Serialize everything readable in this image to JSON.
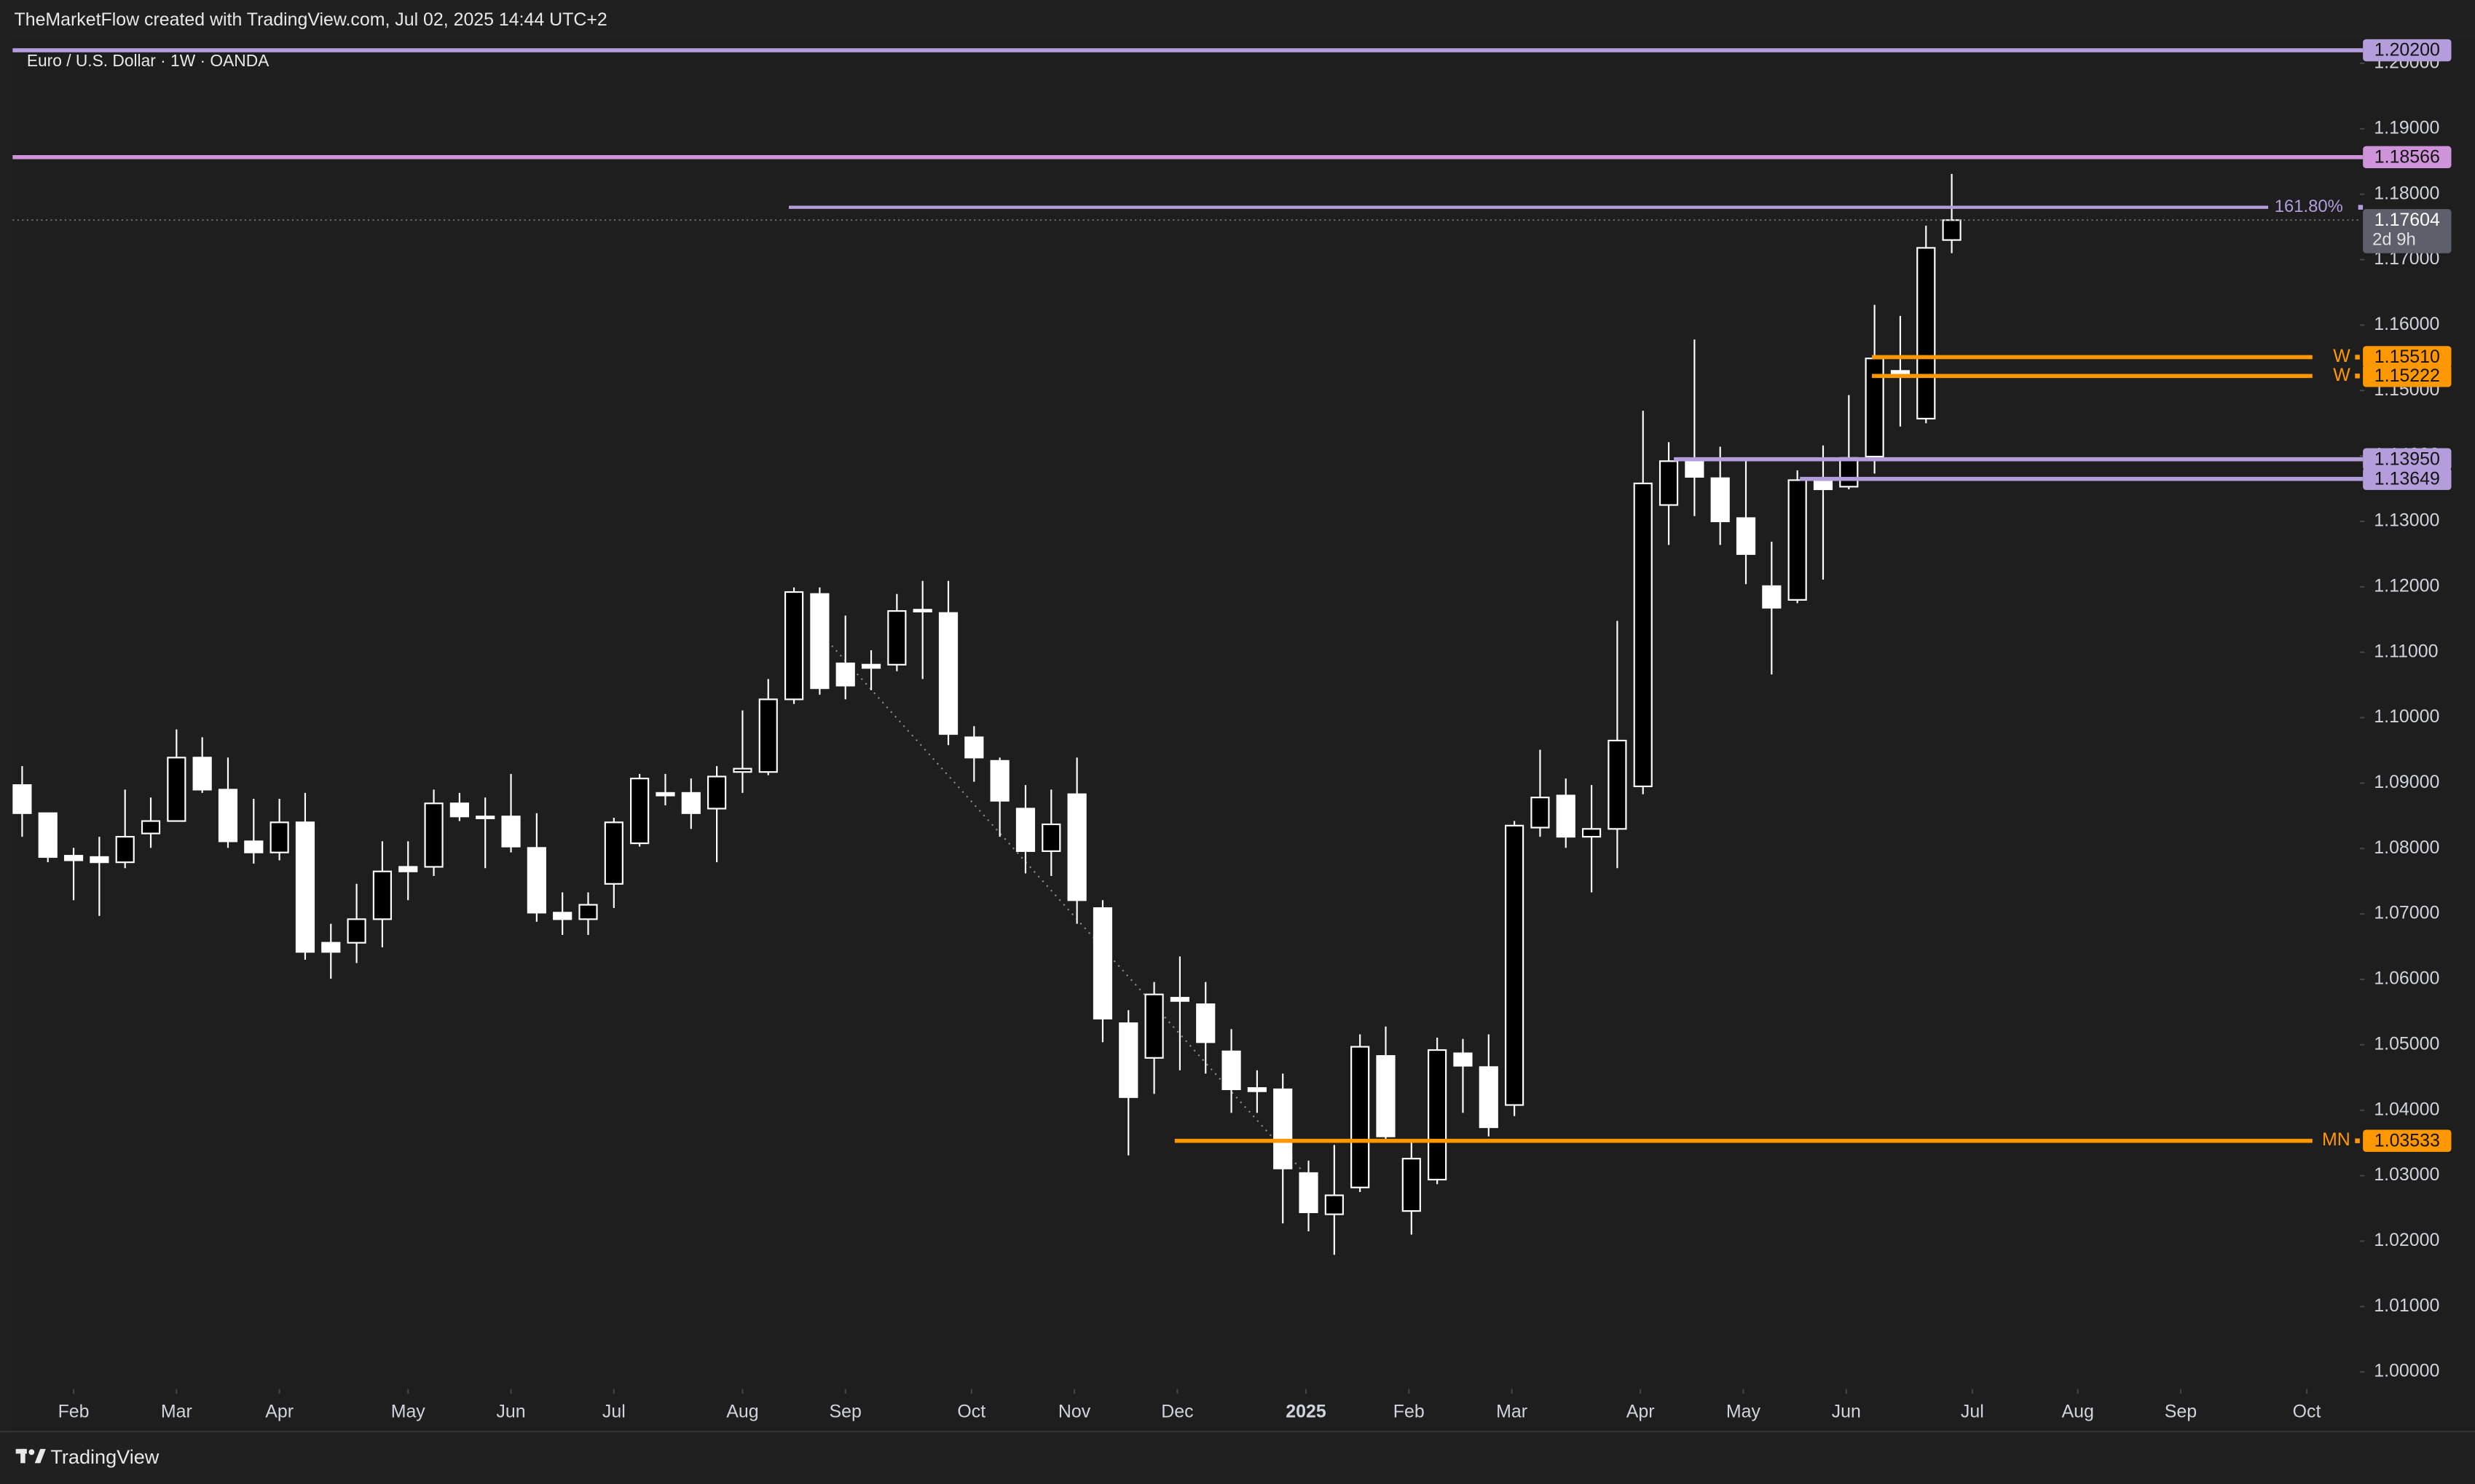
{
  "header": {
    "caption": "TheMarketFlow created with TradingView.com, Jul 02, 2025 14:44 UTC+2"
  },
  "footer": {
    "brand": "TradingView"
  },
  "chart_data": {
    "type": "candlestick",
    "title": "Euro / U.S. Dollar · 1W · OANDA",
    "up_color": "#000000",
    "down_color": "#ffffff",
    "wick_color": "#ffffff",
    "candles": [
      {
        "o": 1.0897,
        "h": 1.0926,
        "l": 1.0818,
        "c": 1.0854
      },
      {
        "o": 1.0854,
        "h": 1.0854,
        "l": 1.0779,
        "c": 1.0787
      },
      {
        "o": 1.0789,
        "h": 1.0801,
        "l": 1.0721,
        "c": 1.0782
      },
      {
        "o": 1.0787,
        "h": 1.0818,
        "l": 1.0697,
        "c": 1.0779
      },
      {
        "o": 1.0779,
        "h": 1.089,
        "l": 1.077,
        "c": 1.0818
      },
      {
        "o": 1.0823,
        "h": 1.0878,
        "l": 1.0801,
        "c": 1.0842
      },
      {
        "o": 1.0842,
        "h": 1.0982,
        "l": 1.0842,
        "c": 1.0939
      },
      {
        "o": 1.0939,
        "h": 1.097,
        "l": 1.0885,
        "c": 1.089
      },
      {
        "o": 1.089,
        "h": 1.0939,
        "l": 1.0801,
        "c": 1.0811
      },
      {
        "o": 1.0811,
        "h": 1.0876,
        "l": 1.0777,
        "c": 1.0794
      },
      {
        "o": 1.0794,
        "h": 1.0876,
        "l": 1.0782,
        "c": 1.084
      },
      {
        "o": 1.084,
        "h": 1.0885,
        "l": 1.063,
        "c": 1.0642
      },
      {
        "o": 1.0656,
        "h": 1.0685,
        "l": 1.0601,
        "c": 1.0642
      },
      {
        "o": 1.0656,
        "h": 1.0746,
        "l": 1.0625,
        "c": 1.0692
      },
      {
        "o": 1.0692,
        "h": 1.0811,
        "l": 1.0649,
        "c": 1.0765
      },
      {
        "o": 1.0772,
        "h": 1.0811,
        "l": 1.0721,
        "c": 1.0765
      },
      {
        "o": 1.0772,
        "h": 1.089,
        "l": 1.0758,
        "c": 1.0869
      },
      {
        "o": 1.0869,
        "h": 1.0885,
        "l": 1.0842,
        "c": 1.0849
      },
      {
        "o": 1.0849,
        "h": 1.0878,
        "l": 1.077,
        "c": 1.0847
      },
      {
        "o": 1.0849,
        "h": 1.0914,
        "l": 1.0794,
        "c": 1.0803
      },
      {
        "o": 1.0801,
        "h": 1.0854,
        "l": 1.0688,
        "c": 1.0702
      },
      {
        "o": 1.0702,
        "h": 1.0733,
        "l": 1.0668,
        "c": 1.0692
      },
      {
        "o": 1.0692,
        "h": 1.0733,
        "l": 1.0668,
        "c": 1.0714
      },
      {
        "o": 1.0746,
        "h": 1.0847,
        "l": 1.0709,
        "c": 1.084
      },
      {
        "o": 1.0808,
        "h": 1.0914,
        "l": 1.0803,
        "c": 1.0907
      },
      {
        "o": 1.0885,
        "h": 1.0914,
        "l": 1.0866,
        "c": 1.0881
      },
      {
        "o": 1.0885,
        "h": 1.0907,
        "l": 1.083,
        "c": 1.0854
      },
      {
        "o": 1.0861,
        "h": 1.0926,
        "l": 1.0779,
        "c": 1.091
      },
      {
        "o": 1.0917,
        "h": 1.1011,
        "l": 1.0885,
        "c": 1.0922
      },
      {
        "o": 1.0917,
        "h": 1.1059,
        "l": 1.0912,
        "c": 1.1028
      },
      {
        "o": 1.1028,
        "h": 1.1199,
        "l": 1.1021,
        "c": 1.1192
      },
      {
        "o": 1.1189,
        "h": 1.1199,
        "l": 1.1035,
        "c": 1.1045
      },
      {
        "o": 1.1083,
        "h": 1.1156,
        "l": 1.1028,
        "c": 1.1049
      },
      {
        "o": 1.1081,
        "h": 1.1103,
        "l": 1.1042,
        "c": 1.1076
      },
      {
        "o": 1.1081,
        "h": 1.1189,
        "l": 1.1071,
        "c": 1.1163
      },
      {
        "o": 1.1165,
        "h": 1.1209,
        "l": 1.1059,
        "c": 1.1163
      },
      {
        "o": 1.116,
        "h": 1.1209,
        "l": 1.0958,
        "c": 1.0975
      },
      {
        "o": 1.097,
        "h": 1.0987,
        "l": 1.0902,
        "c": 1.0939
      },
      {
        "o": 1.0934,
        "h": 1.0939,
        "l": 1.0818,
        "c": 1.0873
      },
      {
        "o": 1.0861,
        "h": 1.0897,
        "l": 1.0762,
        "c": 1.0796
      },
      {
        "o": 1.0796,
        "h": 1.089,
        "l": 1.0758,
        "c": 1.0837
      },
      {
        "o": 1.0883,
        "h": 1.0939,
        "l": 1.0685,
        "c": 1.0721
      },
      {
        "o": 1.0709,
        "h": 1.0721,
        "l": 1.0504,
        "c": 1.054
      },
      {
        "o": 1.0533,
        "h": 1.0553,
        "l": 1.0331,
        "c": 1.042
      },
      {
        "o": 1.048,
        "h": 1.0596,
        "l": 1.0425,
        "c": 1.0577
      },
      {
        "o": 1.0572,
        "h": 1.0635,
        "l": 1.0461,
        "c": 1.0567
      },
      {
        "o": 1.0562,
        "h": 1.0596,
        "l": 1.0456,
        "c": 1.0504
      },
      {
        "o": 1.049,
        "h": 1.0524,
        "l": 1.0396,
        "c": 1.0432
      },
      {
        "o": 1.0434,
        "h": 1.0461,
        "l": 1.0396,
        "c": 1.0429
      },
      {
        "o": 1.0432,
        "h": 1.0456,
        "l": 1.0227,
        "c": 1.0311
      },
      {
        "o": 1.0304,
        "h": 1.0323,
        "l": 1.0215,
        "c": 1.0244
      },
      {
        "o": 1.0241,
        "h": 1.0347,
        "l": 1.0179,
        "c": 1.027
      },
      {
        "o": 1.0282,
        "h": 1.0516,
        "l": 1.0275,
        "c": 1.0497
      },
      {
        "o": 1.0483,
        "h": 1.0528,
        "l": 1.0355,
        "c": 1.036
      },
      {
        "o": 1.0246,
        "h": 1.0355,
        "l": 1.021,
        "c": 1.0326
      },
      {
        "o": 1.0294,
        "h": 1.0511,
        "l": 1.0287,
        "c": 1.0492
      },
      {
        "o": 1.0487,
        "h": 1.0509,
        "l": 1.0396,
        "c": 1.0468
      },
      {
        "o": 1.0466,
        "h": 1.0516,
        "l": 1.036,
        "c": 1.0374
      },
      {
        "o": 1.0408,
        "h": 1.0842,
        "l": 1.0391,
        "c": 1.0835
      },
      {
        "o": 1.0832,
        "h": 1.0951,
        "l": 1.0818,
        "c": 1.0878
      },
      {
        "o": 1.0881,
        "h": 1.0907,
        "l": 1.0801,
        "c": 1.0818
      },
      {
        "o": 1.0818,
        "h": 1.0897,
        "l": 1.0733,
        "c": 1.083
      },
      {
        "o": 1.083,
        "h": 1.1148,
        "l": 1.077,
        "c": 1.0965
      },
      {
        "o": 1.0895,
        "h": 1.1469,
        "l": 1.0883,
        "c": 1.1358
      },
      {
        "o": 1.1325,
        "h": 1.1421,
        "l": 1.1264,
        "c": 1.1392
      },
      {
        "o": 1.1392,
        "h": 1.1578,
        "l": 1.1308,
        "c": 1.1368
      },
      {
        "o": 1.1366,
        "h": 1.1414,
        "l": 1.1264,
        "c": 1.13
      },
      {
        "o": 1.1305,
        "h": 1.1392,
        "l": 1.1204,
        "c": 1.125
      },
      {
        "o": 1.1201,
        "h": 1.1269,
        "l": 1.1066,
        "c": 1.1168
      },
      {
        "o": 1.118,
        "h": 1.1378,
        "l": 1.1175,
        "c": 1.1363
      },
      {
        "o": 1.1366,
        "h": 1.1416,
        "l": 1.1211,
        "c": 1.1349
      },
      {
        "o": 1.1353,
        "h": 1.1493,
        "l": 1.1349,
        "c": 1.1397
      },
      {
        "o": 1.1399,
        "h": 1.1631,
        "l": 1.1373,
        "c": 1.1549
      },
      {
        "o": 1.153,
        "h": 1.1614,
        "l": 1.1445,
        "c": 1.1522
      },
      {
        "o": 1.1457,
        "h": 1.1752,
        "l": 1.145,
        "c": 1.1718
      },
      {
        "o": 1.173,
        "h": 1.1831,
        "l": 1.171,
        "c": 1.17604
      }
    ],
    "countdown": "2d 9h",
    "xlim": [
      -0.37,
      90.86
    ],
    "xticks": [
      {
        "value": 2.0,
        "label": "Feb"
      },
      {
        "value": 6.0,
        "label": "Mar"
      },
      {
        "value": 10.0,
        "label": "Apr"
      },
      {
        "value": 15.0,
        "label": "May"
      },
      {
        "value": 19.0,
        "label": "Jun"
      },
      {
        "value": 23.0,
        "label": "Jul"
      },
      {
        "value": 28.0,
        "label": "Aug"
      },
      {
        "value": 32.0,
        "label": "Sep"
      },
      {
        "value": 36.9,
        "label": "Oct"
      },
      {
        "value": 40.9,
        "label": "Nov"
      },
      {
        "value": 44.9,
        "label": "Dec"
      },
      {
        "value": 49.9,
        "label": "2025",
        "bold": true
      },
      {
        "value": 53.9,
        "label": "Feb"
      },
      {
        "value": 57.9,
        "label": "Mar"
      },
      {
        "value": 62.9,
        "label": "Apr"
      },
      {
        "value": 66.9,
        "label": "May"
      },
      {
        "value": 70.9,
        "label": "Jun"
      },
      {
        "value": 75.8,
        "label": "Jul"
      },
      {
        "value": 79.9,
        "label": "Aug"
      },
      {
        "value": 83.9,
        "label": "Sep"
      },
      {
        "value": 88.8,
        "label": "Oct"
      }
    ],
    "ylim": [
      0.9974,
      1.2036
    ],
    "yticks": [
      {
        "value": 1.0,
        "label": "1.00000"
      },
      {
        "value": 1.01,
        "label": "1.01000"
      },
      {
        "value": 1.02,
        "label": "1.02000"
      },
      {
        "value": 1.03,
        "label": "1.03000"
      },
      {
        "value": 1.04,
        "label": "1.04000"
      },
      {
        "value": 1.05,
        "label": "1.05000"
      },
      {
        "value": 1.06,
        "label": "1.06000"
      },
      {
        "value": 1.07,
        "label": "1.07000"
      },
      {
        "value": 1.08,
        "label": "1.08000"
      },
      {
        "value": 1.09,
        "label": "1.09000"
      },
      {
        "value": 1.1,
        "label": "1.10000"
      },
      {
        "value": 1.11,
        "label": "1.11000"
      },
      {
        "value": 1.12,
        "label": "1.12000"
      },
      {
        "value": 1.13,
        "label": "1.13000"
      },
      {
        "value": 1.14,
        "label": "1.14000"
      },
      {
        "value": 1.15,
        "label": "1.15000"
      },
      {
        "value": 1.16,
        "label": "1.16000"
      },
      {
        "value": 1.17,
        "label": "1.17000"
      },
      {
        "value": 1.18,
        "label": "1.18000"
      },
      {
        "value": 1.19,
        "label": "1.19000"
      },
      {
        "value": 1.2,
        "label": "1.20000"
      }
    ],
    "grid": false,
    "levels": [
      {
        "value": 1.202,
        "label": "1.20200",
        "color": "#b39ddb"
      },
      {
        "value": 1.18566,
        "label": "1.18566",
        "color": "#ce93d8"
      },
      {
        "value": 1.178,
        "label": "161.80%",
        "color": "#b39ddb",
        "style": "fib",
        "from": 29.8,
        "to": 87.3
      },
      {
        "value": 1.1551,
        "label": "1.15510",
        "tag": "W",
        "color": "#ff9800",
        "from": 71.9
      },
      {
        "value": 1.15222,
        "label": "1.15222",
        "tag": "W",
        "color": "#ff9800",
        "from": 71.9
      },
      {
        "value": 1.1395,
        "label": "1.13950",
        "color": "#b39ddb",
        "from": 64.2
      },
      {
        "value": 1.13649,
        "label": "1.13649",
        "color": "#b39ddb",
        "from": 69.1
      },
      {
        "value": 1.03533,
        "label": "1.03533",
        "tag": "MN",
        "color": "#ff9800",
        "from": 44.8
      }
    ]
  }
}
